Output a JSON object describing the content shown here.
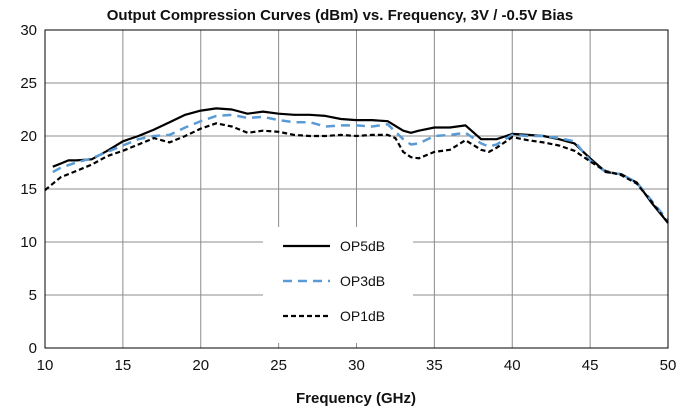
{
  "chart_data": {
    "type": "line",
    "title": "Output Compression Curves (dBm) vs. Frequency, 3V / -0.5V Bias",
    "xlabel": "Frequency (GHz)",
    "ylabel": "",
    "xlim": [
      10,
      50
    ],
    "ylim": [
      0,
      30
    ],
    "xticks": [
      "10",
      "15",
      "20",
      "25",
      "30",
      "35",
      "40",
      "45",
      "50"
    ],
    "yticks": [
      "0",
      "5",
      "10",
      "15",
      "20",
      "25",
      "30"
    ],
    "grid": true,
    "legend_position": "center-bottom",
    "series": [
      {
        "name": "OP5dB",
        "color": "#000000",
        "style": "solid",
        "x": [
          10.5,
          11,
          11.5,
          12,
          13,
          14,
          15,
          16,
          17,
          18,
          19,
          20,
          21,
          22,
          23,
          24,
          25,
          26,
          27,
          28,
          29,
          30,
          31,
          32,
          33,
          33.5,
          34,
          35,
          36,
          37,
          38,
          39,
          40,
          41,
          42,
          43,
          44,
          45,
          46,
          47,
          48,
          49,
          50
        ],
        "values": [
          17.1,
          17.4,
          17.7,
          17.7,
          17.8,
          18.6,
          19.5,
          20.0,
          20.6,
          21.3,
          22.0,
          22.4,
          22.6,
          22.5,
          22.1,
          22.3,
          22.1,
          22.0,
          22.0,
          21.9,
          21.6,
          21.5,
          21.5,
          21.4,
          20.5,
          20.3,
          20.5,
          20.8,
          20.8,
          21.0,
          19.7,
          19.7,
          20.2,
          20.1,
          20.0,
          19.7,
          19.3,
          17.9,
          16.6,
          16.4,
          15.6,
          13.6,
          11.8
        ]
      },
      {
        "name": "OP3dB",
        "color": "#5b9bd5",
        "style": "dashed",
        "x": [
          10.5,
          11,
          12,
          13,
          14,
          15,
          16,
          17,
          18,
          19,
          20,
          21,
          22,
          23,
          24,
          25,
          26,
          27,
          28,
          29,
          30,
          31,
          32,
          33,
          33.5,
          34,
          35,
          36,
          37,
          38,
          38.5,
          39,
          40,
          41,
          42,
          43,
          44,
          45,
          46,
          47,
          48,
          49,
          50
        ],
        "values": [
          16.6,
          17.0,
          17.5,
          17.9,
          18.5,
          19.1,
          19.7,
          20.0,
          20.1,
          20.8,
          21.4,
          21.9,
          22.0,
          21.7,
          21.8,
          21.5,
          21.3,
          21.3,
          20.9,
          21.0,
          21.0,
          20.9,
          21.1,
          19.7,
          19.2,
          19.3,
          20.0,
          20.1,
          20.3,
          19.3,
          19.0,
          19.2,
          20.1,
          20.0,
          20.0,
          19.8,
          19.5,
          17.7,
          16.6,
          16.4,
          15.6,
          13.8,
          12.0
        ]
      },
      {
        "name": "OP1dB",
        "color": "#000000",
        "style": "dashed",
        "x": [
          10,
          10.5,
          11,
          12,
          13,
          14,
          15,
          16,
          17,
          18,
          19,
          20,
          21,
          22,
          23,
          24,
          25,
          26,
          27,
          28,
          29,
          30,
          31,
          32,
          32.5,
          33,
          33.5,
          34,
          35,
          36,
          37,
          38,
          38.5,
          39,
          40,
          41,
          42,
          43,
          44,
          45,
          46,
          47,
          48,
          49,
          50
        ],
        "values": [
          14.9,
          15.5,
          16.1,
          16.7,
          17.3,
          18.1,
          18.6,
          19.2,
          19.8,
          19.4,
          20.0,
          20.7,
          21.2,
          20.9,
          20.3,
          20.5,
          20.4,
          20.1,
          20.0,
          20.0,
          20.1,
          20.0,
          20.1,
          20.1,
          19.8,
          18.5,
          18.0,
          17.9,
          18.5,
          18.7,
          19.6,
          18.7,
          18.5,
          18.9,
          19.9,
          19.6,
          19.4,
          19.1,
          18.6,
          17.6,
          16.7,
          16.3,
          15.5,
          13.7,
          11.8
        ]
      }
    ]
  }
}
